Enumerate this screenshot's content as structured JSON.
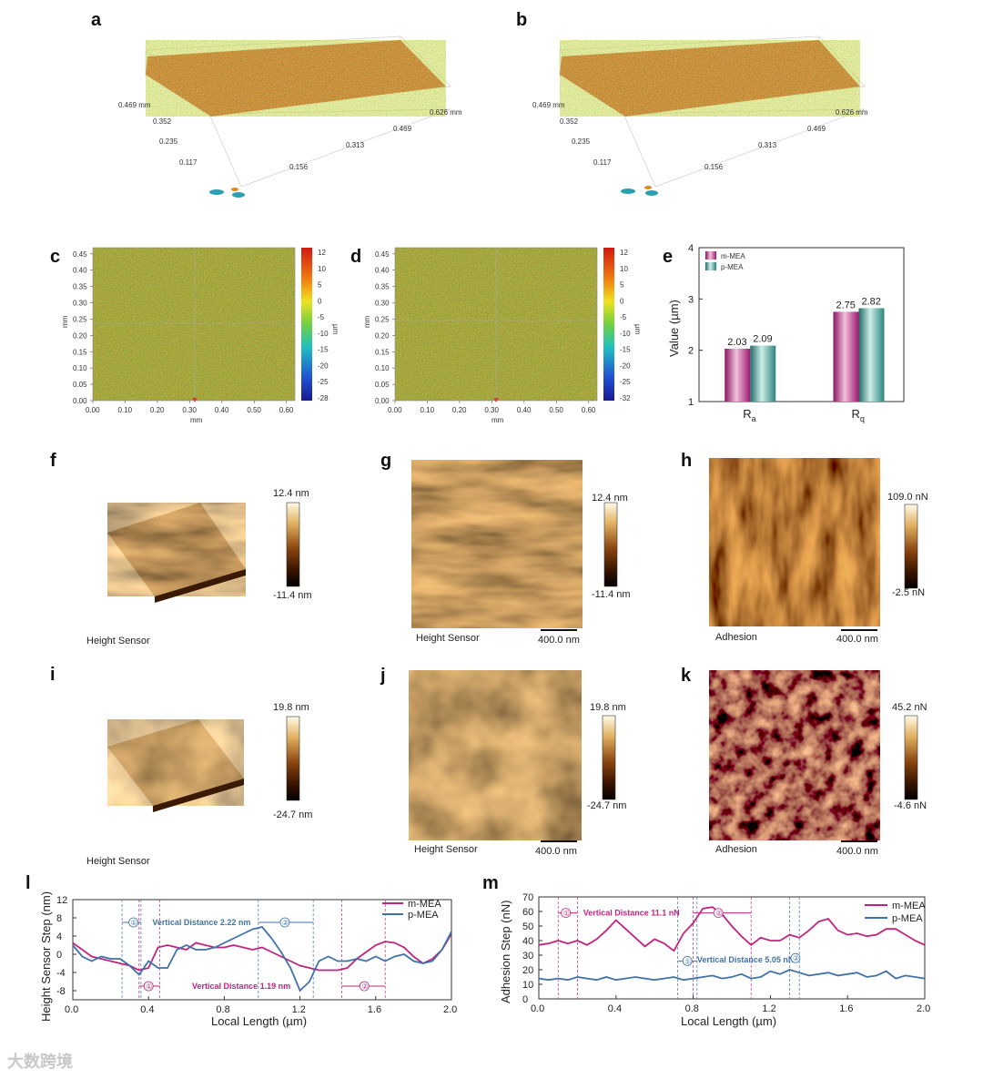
{
  "panels": [
    "a",
    "b",
    "c",
    "d",
    "e",
    "f",
    "g",
    "h",
    "i",
    "j",
    "k",
    "l",
    "m"
  ],
  "colors": {
    "m_mea": "#c0247e",
    "p_mea": "#3f72a8",
    "bar_m": "#c0247e",
    "bar_p": "#2f8f86",
    "surface_red": "#c8281a",
    "surface_green": "#6fbf3a",
    "afm_dark": "#2a1200",
    "afm_mid": "#a5621a",
    "afm_light": "#f4e2b0"
  },
  "panel_a": {
    "y_ticks": [
      "0.469 mm",
      "0.352",
      "0.235",
      "0.117"
    ],
    "x_ticks": [
      "0.626 mm",
      "0.469",
      "0.313",
      "0.156"
    ]
  },
  "panel_b": {
    "y_ticks": [
      "0.469 mm",
      "0.352",
      "0.235",
      "0.117"
    ],
    "x_ticks": [
      "0.626 mm",
      "0.469",
      "0.313",
      "0.156"
    ]
  },
  "panel_c": {
    "x_ticks": [
      "0.00",
      "0.10",
      "0.20",
      "0.30",
      "0.40",
      "0.50",
      "0.60"
    ],
    "y_ticks": [
      "0.00",
      "0.05",
      "0.10",
      "0.15",
      "0.20",
      "0.25",
      "0.30",
      "0.35",
      "0.40",
      "0.45"
    ],
    "xlabel": "mm",
    "ylabel": "mm",
    "cbar_unit": "µm",
    "cbar_ticks": [
      "12",
      "10",
      "5",
      "0",
      "-5",
      "-10",
      "-15",
      "-20",
      "-25",
      "-28"
    ]
  },
  "panel_d": {
    "x_ticks": [
      "0.00",
      "0.10",
      "0.20",
      "0.30",
      "0.40",
      "0.50",
      "0.60"
    ],
    "y_ticks": [
      "0.00",
      "0.05",
      "0.10",
      "0.15",
      "0.20",
      "0.25",
      "0.30",
      "0.35",
      "0.40",
      "0.45"
    ],
    "xlabel": "mm",
    "ylabel": "mm",
    "cbar_unit": "µm",
    "cbar_ticks": [
      "12",
      "10",
      "5",
      "0",
      "-5",
      "-10",
      "-15",
      "-20",
      "-25",
      "-32"
    ]
  },
  "panel_f": {
    "cbar_max": "12.4 nm",
    "cbar_min": "-11.4 nm",
    "caption": "Height Sensor"
  },
  "panel_g": {
    "cbar_max": "12.4 nm",
    "cbar_min": "-11.4 nm",
    "caption": "Height Sensor",
    "scale": "400.0 nm"
  },
  "panel_h": {
    "cbar_max": "109.0 nN",
    "cbar_min": "-2.5 nN",
    "caption": "Adhesion",
    "scale": "400.0 nm"
  },
  "panel_i": {
    "cbar_max": "19.8 nm",
    "cbar_min": "-24.7 nm",
    "caption": "Height Sensor"
  },
  "panel_j": {
    "cbar_max": "19.8 nm",
    "cbar_min": "-24.7 nm",
    "caption": "Height Sensor",
    "scale": "400.0 nm"
  },
  "panel_k": {
    "cbar_max": "45.2 nN",
    "cbar_min": "-4.6 nN",
    "caption": "Adhesion",
    "scale": "400.0 nm"
  },
  "chart_data": [
    {
      "panel": "e",
      "type": "bar",
      "categories": [
        "Ra",
        "Rq"
      ],
      "ylabel": "Value (µm)",
      "ylim": [
        1,
        4
      ],
      "y_ticks": [
        "1",
        "2",
        "3",
        "4"
      ],
      "legend": "top-left",
      "series": [
        {
          "name": "m-MEA",
          "values": [
            2.03,
            2.75
          ],
          "labels": [
            "2.03",
            "2.75"
          ]
        },
        {
          "name": "p-MEA",
          "values": [
            2.09,
            2.82
          ],
          "labels": [
            "2.09",
            "2.82"
          ]
        }
      ]
    },
    {
      "panel": "l",
      "type": "line",
      "xlabel": "Local Length (µm)",
      "ylabel": "Height Sensor Step (nm)",
      "xlim": [
        0,
        2.0
      ],
      "ylim": [
        -10,
        12
      ],
      "x_ticks": [
        "0.0",
        "0.4",
        "0.8",
        "1.2",
        "1.6",
        "2.0"
      ],
      "y_ticks": [
        "-8",
        "-4",
        "0",
        "4",
        "8",
        "12"
      ],
      "legend": "top-right",
      "series": [
        {
          "name": "m-MEA",
          "x": [
            0.0,
            0.05,
            0.1,
            0.15,
            0.2,
            0.25,
            0.3,
            0.35,
            0.4,
            0.45,
            0.5,
            0.55,
            0.6,
            0.65,
            0.7,
            0.75,
            0.8,
            0.85,
            0.9,
            0.95,
            1.0,
            1.05,
            1.1,
            1.15,
            1.2,
            1.25,
            1.3,
            1.35,
            1.4,
            1.45,
            1.5,
            1.55,
            1.6,
            1.65,
            1.7,
            1.75,
            1.8,
            1.85,
            1.9,
            1.95,
            2.0
          ],
          "y": [
            2.5,
            1.0,
            -0.5,
            -1.0,
            -1.5,
            -2.0,
            -2.5,
            -3.5,
            -3.0,
            1.5,
            2.0,
            1.5,
            1.0,
            2.5,
            2.0,
            1.5,
            1.5,
            2.0,
            1.5,
            1.0,
            1.5,
            0.5,
            -0.5,
            -1.5,
            -2.5,
            -3.0,
            -3.5,
            -3.5,
            -3.5,
            -3.0,
            -1.0,
            0.5,
            2.0,
            2.8,
            2.5,
            1.5,
            -0.5,
            -2.0,
            -1.0,
            1.0,
            4.5
          ]
        },
        {
          "name": "p-MEA",
          "x": [
            0.0,
            0.05,
            0.1,
            0.15,
            0.2,
            0.25,
            0.3,
            0.35,
            0.4,
            0.45,
            0.5,
            0.55,
            0.6,
            0.65,
            0.7,
            0.75,
            0.8,
            0.85,
            0.9,
            0.95,
            1.0,
            1.05,
            1.1,
            1.15,
            1.2,
            1.25,
            1.3,
            1.35,
            1.4,
            1.45,
            1.5,
            1.55,
            1.6,
            1.65,
            1.7,
            1.75,
            1.8,
            1.85,
            1.9,
            1.95,
            2.0
          ],
          "y": [
            2.0,
            -0.5,
            -1.5,
            -0.5,
            -1.0,
            -1.0,
            -2.5,
            -4.5,
            -1.5,
            -3.0,
            -3.0,
            1.0,
            2.0,
            1.0,
            1.0,
            1.5,
            2.5,
            3.5,
            4.5,
            5.5,
            6.0,
            3.5,
            0.5,
            -3.0,
            -8.0,
            -6.0,
            -1.5,
            -0.5,
            -1.5,
            -1.5,
            -1.0,
            -1.5,
            -0.5,
            -1.5,
            -0.5,
            0.0,
            -1.5,
            -2.0,
            -1.5,
            1.0,
            5.0
          ]
        }
      ],
      "annotations": [
        "Vertical Distance 2.22 nm",
        "Vertical Distance 1.19 nm",
        "①",
        "②"
      ]
    },
    {
      "panel": "m",
      "type": "line",
      "xlabel": "Local Length (µm)",
      "ylabel": "Adhesion Step (nN)",
      "xlim": [
        0,
        2.0
      ],
      "ylim": [
        0,
        70
      ],
      "x_ticks": [
        "0.0",
        "0.4",
        "0.8",
        "1.2",
        "1.6",
        "2.0"
      ],
      "y_ticks": [
        "0",
        "10",
        "20",
        "30",
        "40",
        "50",
        "60",
        "70"
      ],
      "legend": "top-right",
      "series": [
        {
          "name": "m-MEA",
          "x": [
            0.0,
            0.05,
            0.1,
            0.15,
            0.2,
            0.25,
            0.3,
            0.35,
            0.4,
            0.45,
            0.5,
            0.55,
            0.6,
            0.65,
            0.7,
            0.75,
            0.8,
            0.85,
            0.9,
            0.95,
            1.0,
            1.05,
            1.1,
            1.15,
            1.2,
            1.25,
            1.3,
            1.35,
            1.4,
            1.45,
            1.5,
            1.55,
            1.6,
            1.65,
            1.7,
            1.75,
            1.8,
            1.85,
            1.9,
            1.95,
            2.0
          ],
          "y": [
            37,
            38,
            40,
            38,
            40,
            37,
            41,
            47,
            54,
            48,
            42,
            36,
            41,
            38,
            33,
            45,
            52,
            62,
            63,
            58,
            50,
            43,
            37,
            42,
            40,
            40,
            44,
            42,
            47,
            53,
            55,
            47,
            44,
            45,
            43,
            44,
            48,
            48,
            44,
            40,
            37
          ]
        },
        {
          "name": "p-MEA",
          "x": [
            0.0,
            0.05,
            0.1,
            0.15,
            0.2,
            0.25,
            0.3,
            0.35,
            0.4,
            0.45,
            0.5,
            0.55,
            0.6,
            0.65,
            0.7,
            0.75,
            0.8,
            0.85,
            0.9,
            0.95,
            1.0,
            1.05,
            1.1,
            1.15,
            1.2,
            1.25,
            1.3,
            1.35,
            1.4,
            1.45,
            1.5,
            1.55,
            1.6,
            1.65,
            1.7,
            1.75,
            1.8,
            1.85,
            1.9,
            1.95,
            2.0
          ],
          "y": [
            14,
            13,
            14,
            13,
            15,
            14,
            13,
            15,
            13,
            14,
            15,
            14,
            13,
            14,
            15,
            13,
            14,
            15,
            16,
            14,
            15,
            17,
            14,
            15,
            19,
            17,
            20,
            18,
            16,
            17,
            18,
            16,
            17,
            18,
            15,
            16,
            19,
            14,
            16,
            15,
            14
          ]
        }
      ],
      "annotations": [
        "Vertical Distance 11.1 nN",
        "Vertical Distance 5.05 nN",
        "①",
        "②"
      ]
    }
  ],
  "watermark": "大数跨境"
}
